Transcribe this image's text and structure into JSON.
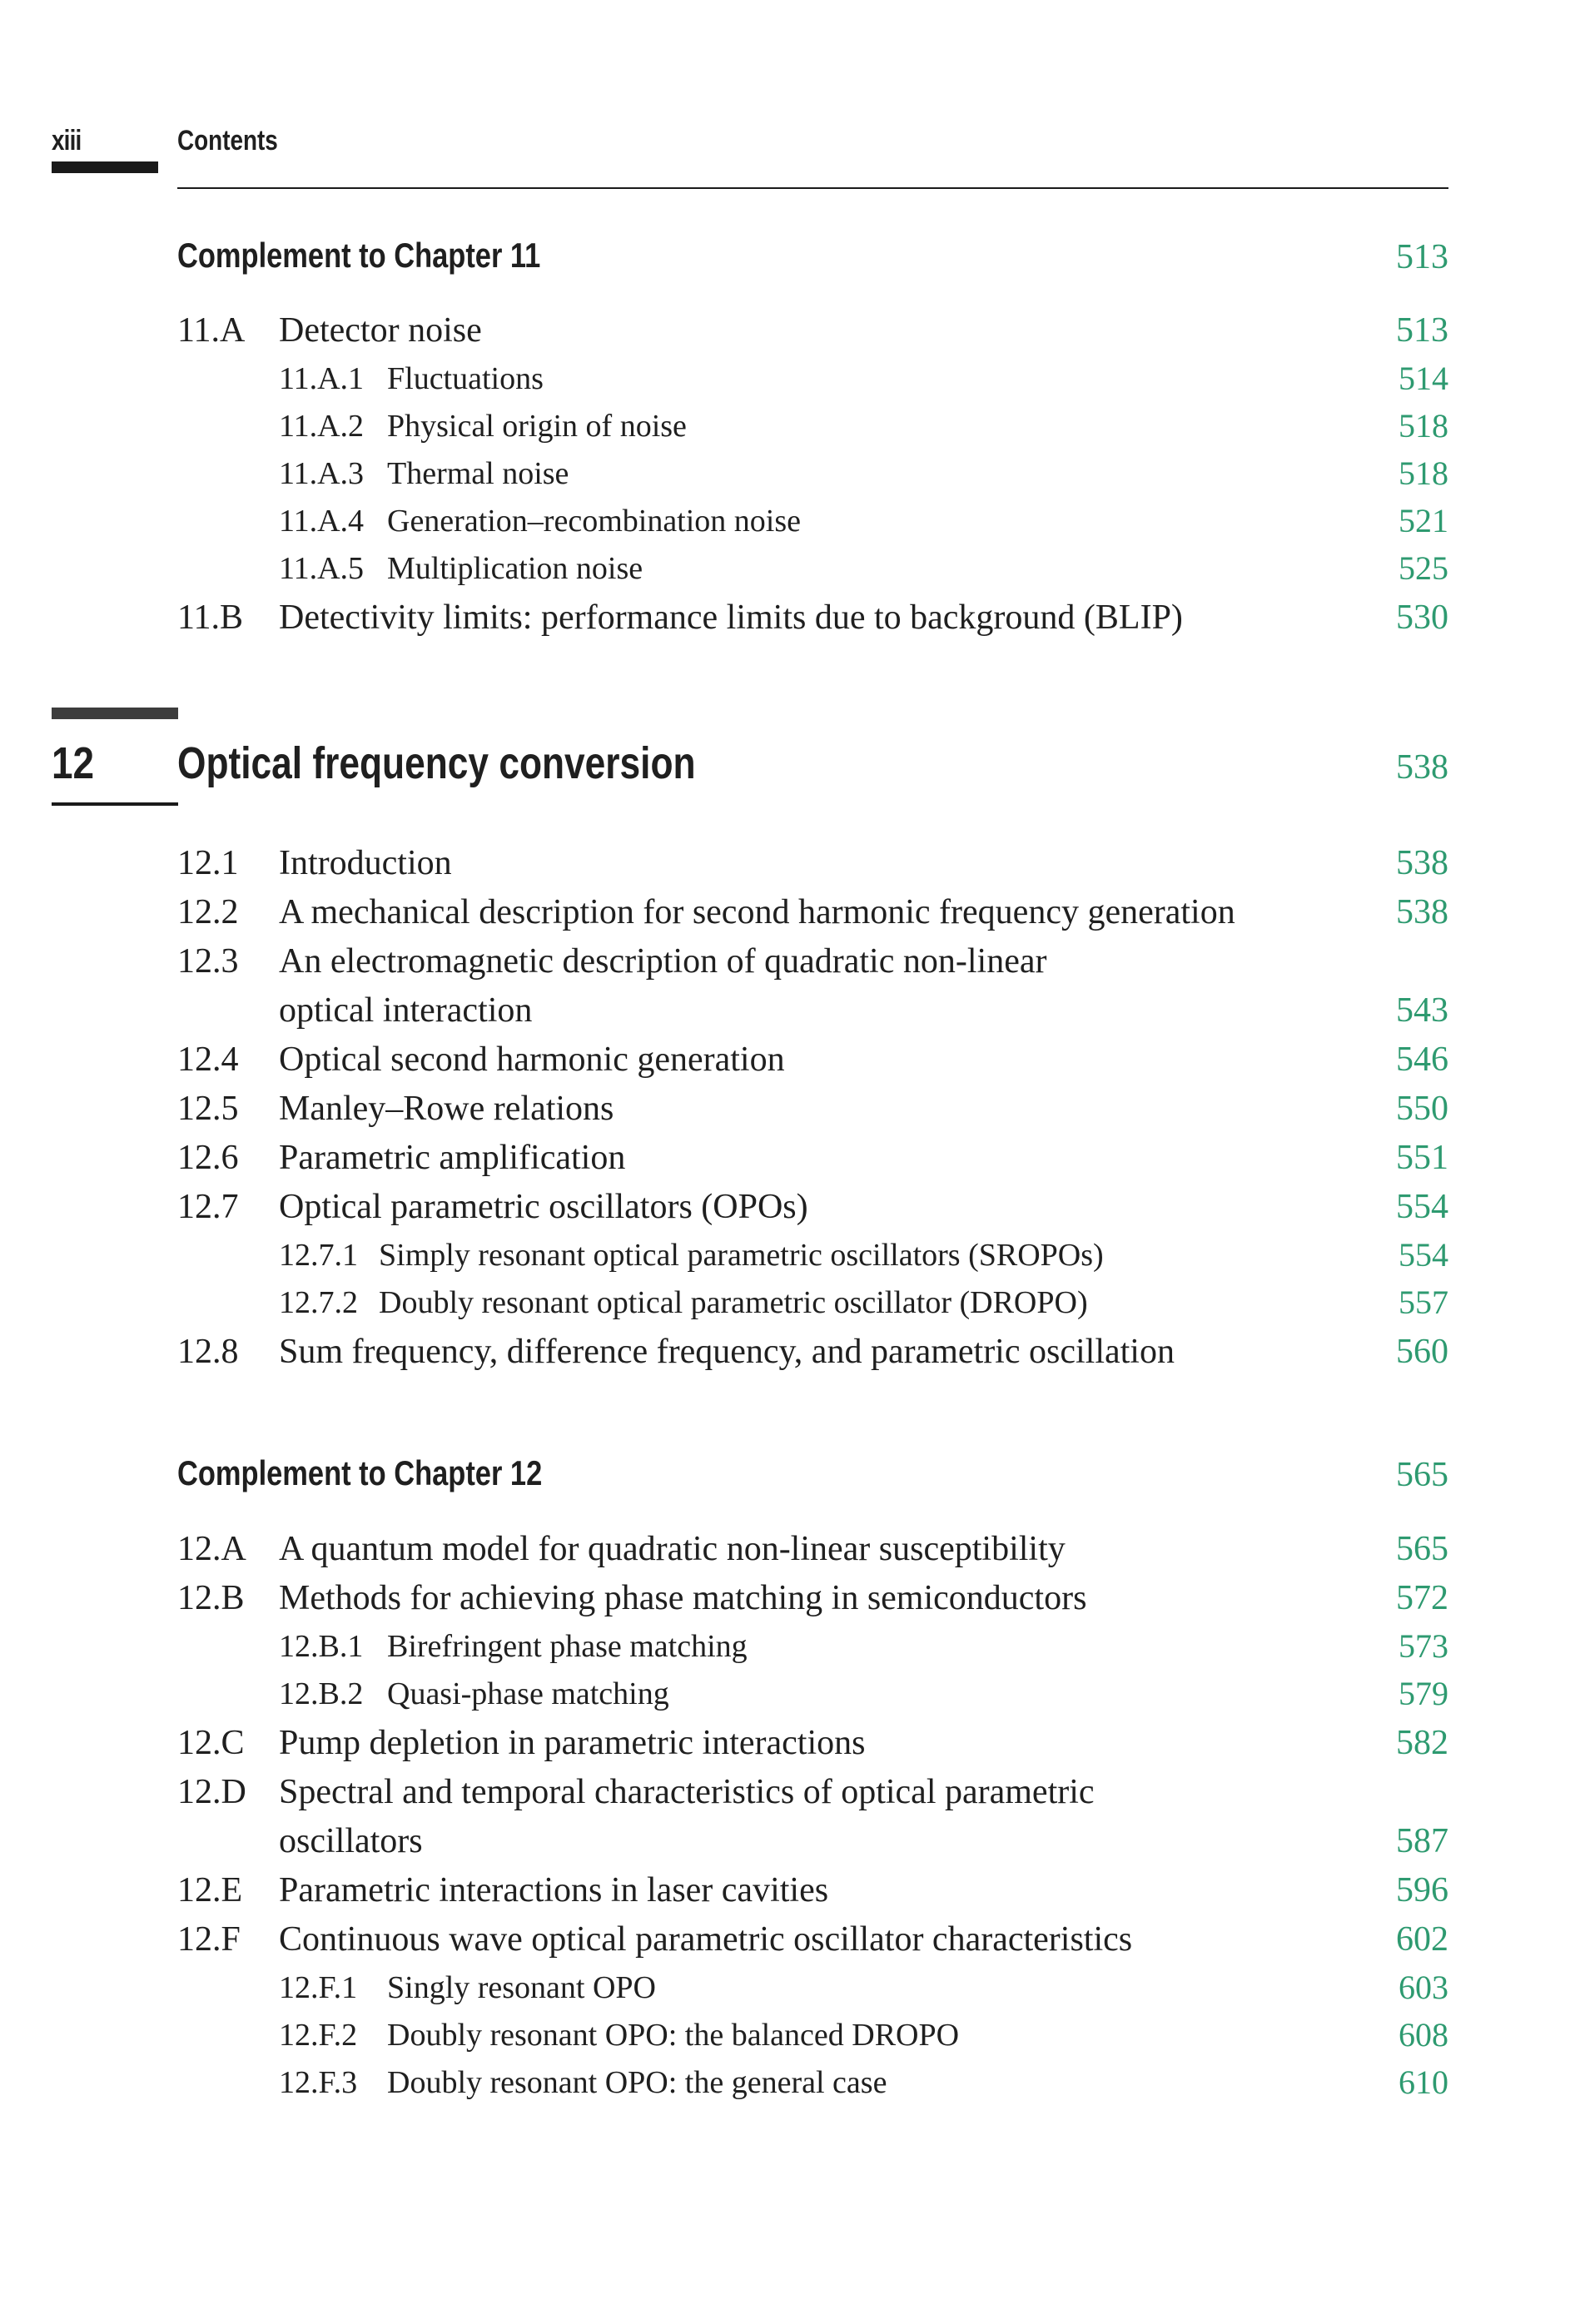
{
  "header": {
    "page_number": "xiii",
    "title": "Contents"
  },
  "complement11": {
    "heading": "Complement to Chapter 11",
    "page": "513",
    "entries": [
      {
        "num": "11.A",
        "title": "Detector noise",
        "page": "513"
      },
      {
        "num": "11.A.1",
        "title": "Fluctuations",
        "page": "514"
      },
      {
        "num": "11.A.2",
        "title": "Physical origin of noise",
        "page": "518"
      },
      {
        "num": "11.A.3",
        "title": "Thermal noise",
        "page": "518"
      },
      {
        "num": "11.A.4",
        "title": "Generation–recombination noise",
        "page": "521"
      },
      {
        "num": "11.A.5",
        "title": "Multiplication noise",
        "page": "525"
      },
      {
        "num": "11.B",
        "title": "Detectivity limits: performance limits due to background (BLIP)",
        "page": "530"
      }
    ]
  },
  "chapter12": {
    "number": "12",
    "title": "Optical frequency conversion",
    "page": "538",
    "entries": [
      {
        "num": "12.1",
        "title": "Introduction",
        "page": "538"
      },
      {
        "num": "12.2",
        "title": "A mechanical description for second harmonic frequency generation",
        "page": "538"
      },
      {
        "num": "12.3",
        "title": "An electromagnetic description of quadratic non-linear",
        "title_cont": "optical interaction",
        "page": "543"
      },
      {
        "num": "12.4",
        "title": "Optical second harmonic generation",
        "page": "546"
      },
      {
        "num": "12.5",
        "title": "Manley–Rowe relations",
        "page": "550"
      },
      {
        "num": "12.6",
        "title": "Parametric amplification",
        "page": "551"
      },
      {
        "num": "12.7",
        "title": "Optical parametric oscillators (OPOs)",
        "page": "554"
      },
      {
        "num": "12.7.1",
        "title": "Simply resonant optical parametric oscillators (SROPOs)",
        "page": "554"
      },
      {
        "num": "12.7.2",
        "title": "Doubly resonant optical parametric oscillator (DROPO)",
        "page": "557"
      },
      {
        "num": "12.8",
        "title": "Sum frequency, difference frequency, and parametric oscillation",
        "page": "560"
      }
    ]
  },
  "complement12": {
    "heading": "Complement to Chapter 12",
    "page": "565",
    "entries": [
      {
        "num": "12.A",
        "title": "A quantum model for quadratic non-linear susceptibility",
        "page": "565"
      },
      {
        "num": "12.B",
        "title": "Methods for achieving phase matching in semiconductors",
        "page": "572"
      },
      {
        "num": "12.B.1",
        "title": "Birefringent phase matching",
        "page": "573"
      },
      {
        "num": "12.B.2",
        "title": "Quasi-phase matching",
        "page": "579"
      },
      {
        "num": "12.C",
        "title": "Pump depletion in parametric interactions",
        "page": "582"
      },
      {
        "num": "12.D",
        "title": "Spectral and temporal characteristics of optical parametric",
        "title_cont": "oscillators",
        "page": "587"
      },
      {
        "num": "12.E",
        "title": "Parametric interactions in laser cavities",
        "page": "596"
      },
      {
        "num": "12.F",
        "title": "Continuous wave optical parametric oscillator characteristics",
        "page": "602"
      },
      {
        "num": "12.F.1",
        "title": "Singly resonant OPO",
        "page": "603"
      },
      {
        "num": "12.F.2",
        "title": "Doubly resonant OPO: the balanced DROPO",
        "page": "608"
      },
      {
        "num": "12.F.3",
        "title": "Doubly resonant OPO: the general case",
        "page": "610"
      }
    ]
  },
  "colors": {
    "page_number": "#2e9a70",
    "text": "#1f1f1f"
  }
}
